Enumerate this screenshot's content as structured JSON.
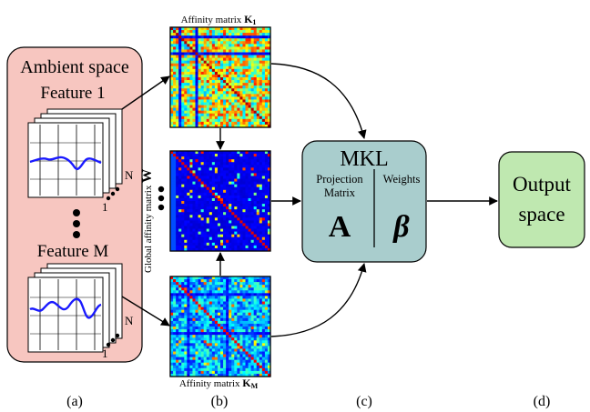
{
  "ambient": {
    "title": "Ambient space",
    "feature_first": "Feature 1",
    "feature_last": "Feature M",
    "stack_top_label": "N",
    "stack_bottom_label": "1"
  },
  "matrices": {
    "top_label_prefix": "Affinity matrix ",
    "top_label_symbol": "K",
    "top_label_subscript": "1",
    "bottom_label_prefix": "Affinity matrix ",
    "bottom_label_symbol": "K",
    "bottom_label_subscript": "M",
    "global_label": "Global affinity matrix ",
    "global_symbol": "W"
  },
  "mkl": {
    "title": "MKL",
    "left_heading_line1": "Projection",
    "left_heading_line2": "Matrix",
    "right_heading": "Weights",
    "left_symbol": "A",
    "right_symbol": "β"
  },
  "output": {
    "line1": "Output",
    "line2": "space"
  },
  "captions": [
    "(a)",
    "(b)",
    "(c)",
    "(d)"
  ],
  "colors": {
    "ambient_fill": "#f7c6c0",
    "mkl_fill": "#a9cdcd",
    "output_fill": "#bfe8b0",
    "signal": "#1a1aff"
  }
}
